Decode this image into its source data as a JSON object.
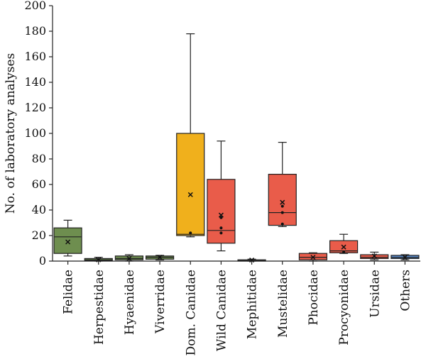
{
  "chart_data": {
    "type": "box",
    "ylabel": "No. of laboratory analyses",
    "ylim": [
      0,
      200
    ],
    "yticks": [
      0,
      20,
      40,
      60,
      80,
      100,
      120,
      140,
      160,
      180,
      200
    ],
    "categories": [
      "Felidae",
      "Herpestidae",
      "Hyaenidae",
      "Viverridae",
      "Dom. Canidae",
      "Wild Canidae",
      "Mephitidae",
      "Mustelidae",
      "Phocidae",
      "Procyonidae",
      "Ursidae",
      "Others"
    ],
    "boxes": [
      {
        "category": "Felidae",
        "color": "#6e8e4f",
        "min": 4,
        "q1": 6,
        "median": 19,
        "q3": 26,
        "max": 32,
        "mean": 15,
        "points": []
      },
      {
        "category": "Herpestidae",
        "color": "#6e8e4f",
        "min": 0,
        "q1": 0.5,
        "median": 1,
        "q3": 2,
        "max": 3,
        "mean": 1,
        "points": []
      },
      {
        "category": "Hyaenidae",
        "color": "#6e8e4f",
        "min": 0,
        "q1": 1,
        "median": 2,
        "q3": 4,
        "max": 5,
        "mean": 2,
        "points": []
      },
      {
        "category": "Viverridae",
        "color": "#6e8e4f",
        "min": 1,
        "q1": 1.5,
        "median": 3,
        "q3": 4,
        "max": 4.5,
        "mean": 3,
        "points": []
      },
      {
        "category": "Dom. Canidae",
        "color": "#f0b01c",
        "min": 19,
        "q1": 20,
        "median": 21,
        "q3": 100,
        "max": 178,
        "mean": 52,
        "points": [
          22
        ]
      },
      {
        "category": "Wild Canidae",
        "color": "#e95c4a",
        "min": 8,
        "q1": 14,
        "median": 24,
        "q3": 64,
        "max": 94,
        "mean": 36,
        "points": [
          34,
          26,
          22
        ]
      },
      {
        "category": "Mephitidae",
        "color": "#e95c4a",
        "min": 0,
        "q1": 0,
        "median": 0.5,
        "q3": 1,
        "max": 1.5,
        "mean": 0.8,
        "points": []
      },
      {
        "category": "Mustelidae",
        "color": "#e95c4a",
        "min": 27,
        "q1": 28,
        "median": 38,
        "q3": 68,
        "max": 93,
        "mean": 46,
        "points": [
          43,
          38,
          29
        ]
      },
      {
        "category": "Phocidae",
        "color": "#e95c4a",
        "min": 0,
        "q1": 1,
        "median": 3,
        "q3": 6,
        "max": 6.5,
        "mean": 3,
        "points": []
      },
      {
        "category": "Procyonidae",
        "color": "#e95c4a",
        "min": 6,
        "q1": 6.5,
        "median": 8,
        "q3": 16,
        "max": 21,
        "mean": 11,
        "points": [
          7
        ]
      },
      {
        "category": "Ursidae",
        "color": "#e95c4a",
        "min": 1,
        "q1": 2,
        "median": 3,
        "q3": 5,
        "max": 7,
        "mean": 4,
        "points": []
      },
      {
        "category": "Others",
        "color": "#5b8fd4",
        "min": 1,
        "q1": 2,
        "median": 3,
        "q3": 4.5,
        "max": 5,
        "mean": 3,
        "points": []
      }
    ],
    "grid": false,
    "legend": "none"
  }
}
